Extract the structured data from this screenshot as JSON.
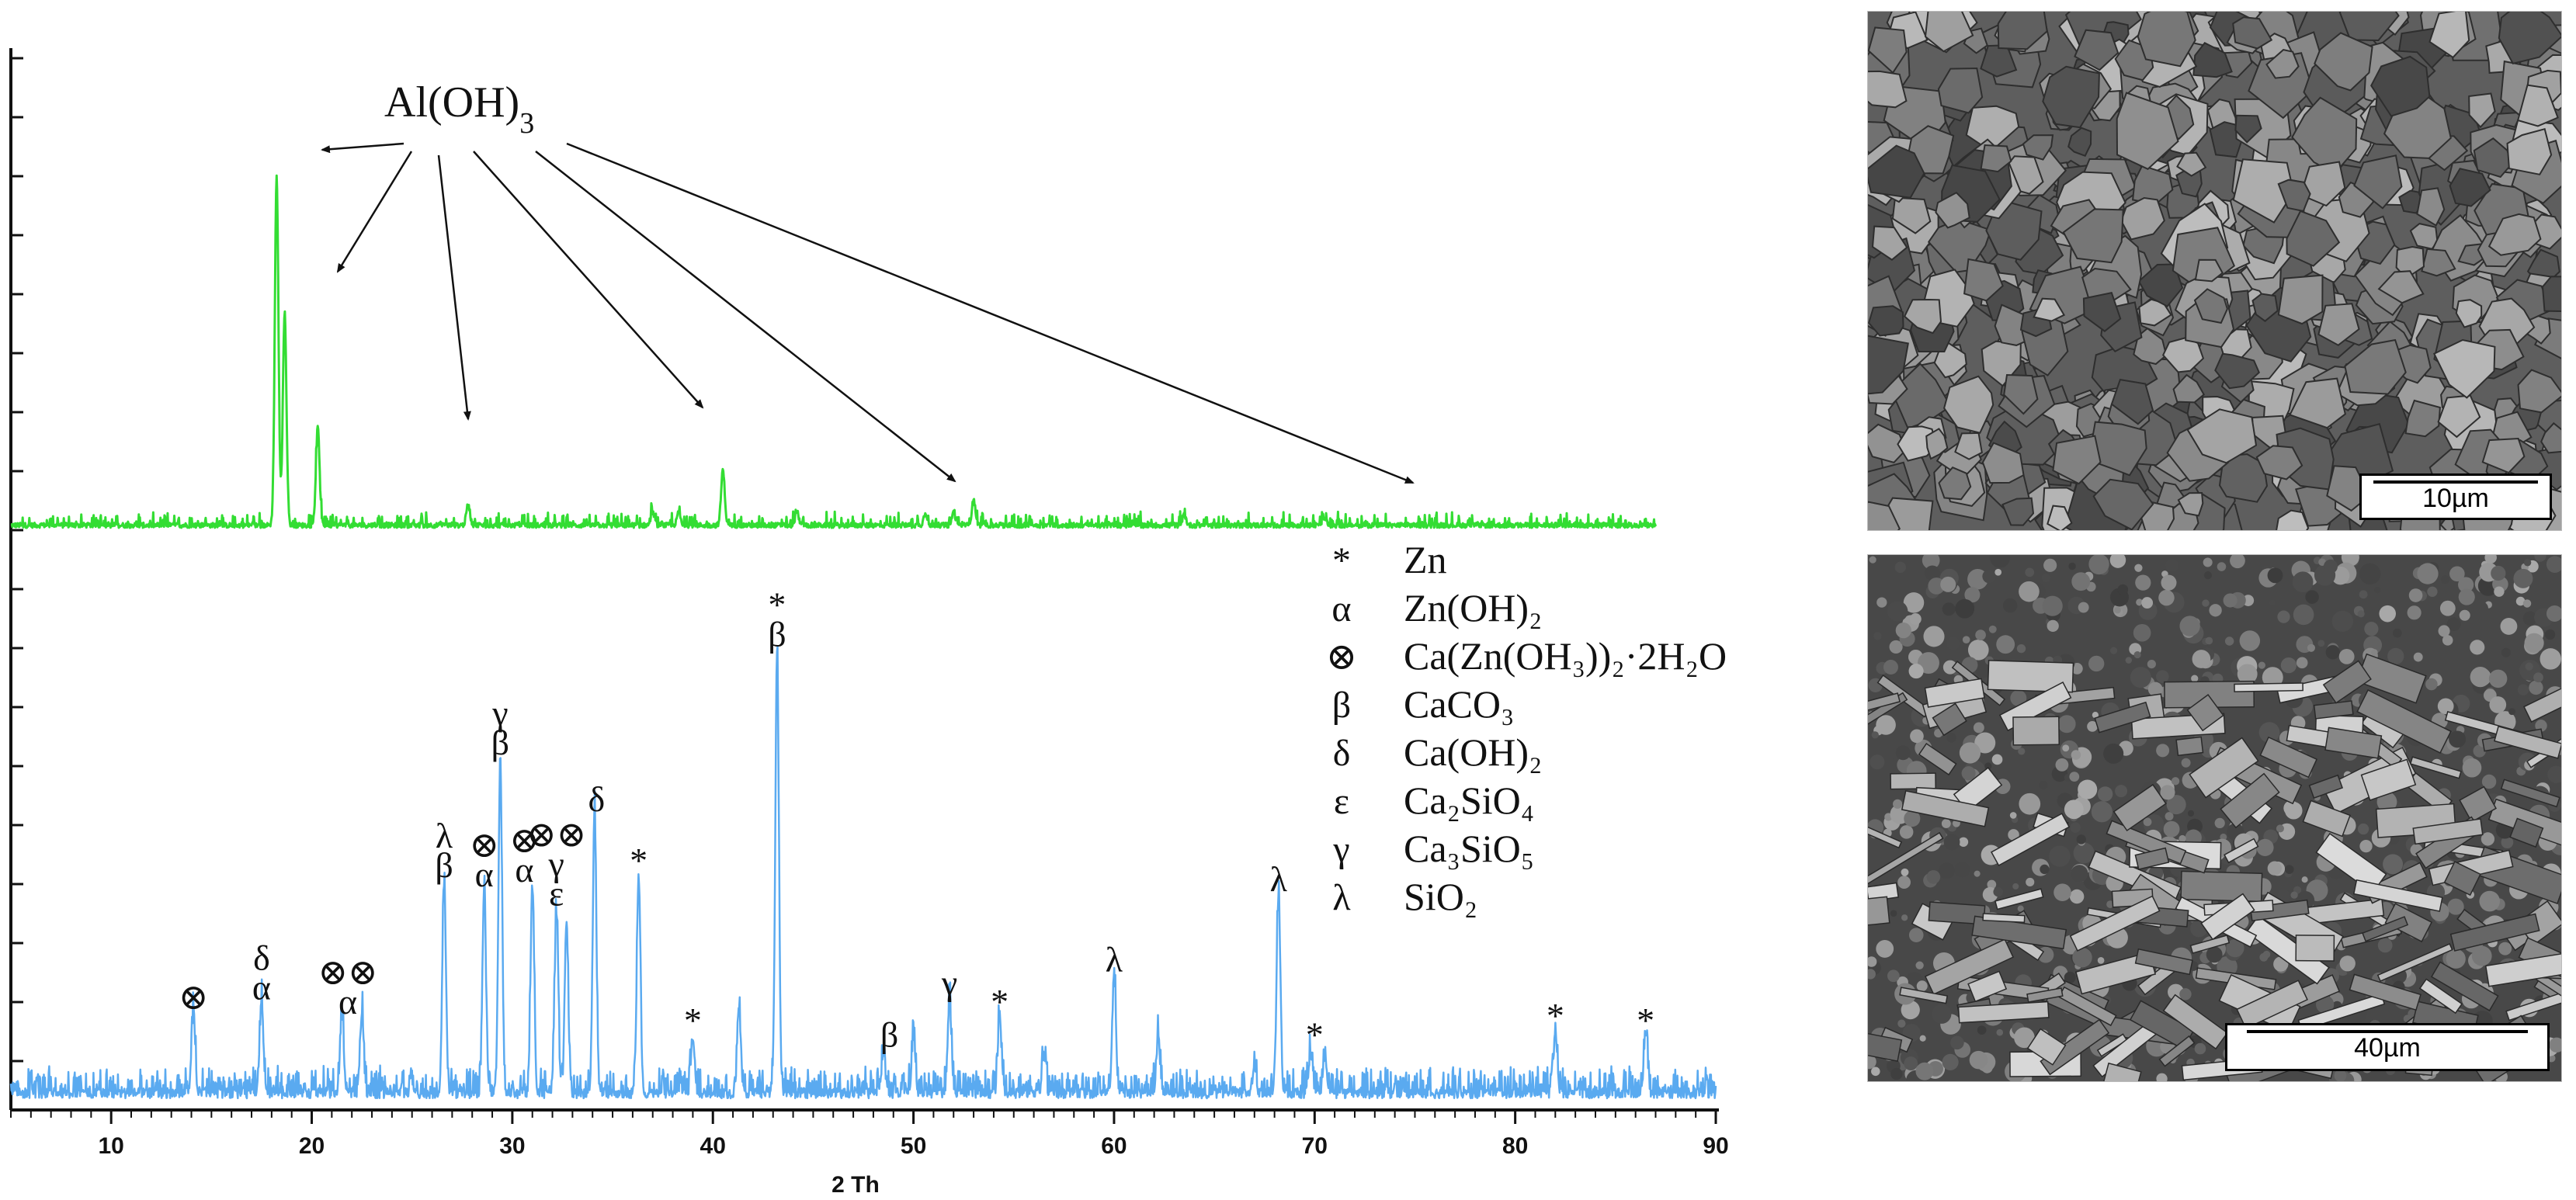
{
  "chart_data": {
    "type": "line",
    "xlabel": "2 Th",
    "ylabel": "",
    "xlim": [
      5,
      90
    ],
    "x_ticks": [
      10,
      20,
      30,
      40,
      50,
      60,
      70,
      80,
      90
    ],
    "grid": false,
    "series": [
      {
        "name": "",
        "color": "#33dd33",
        "peaks": [
          {
            "x": 18.25,
            "y": 0.82
          },
          {
            "x": 18.65,
            "y": 0.5
          },
          {
            "x": 20.3,
            "y": 0.23
          },
          {
            "x": 27.8,
            "y": 0.05
          },
          {
            "x": 37.0,
            "y": 0.03
          },
          {
            "x": 38.3,
            "y": 0.03
          },
          {
            "x": 40.5,
            "y": 0.13
          },
          {
            "x": 44.2,
            "y": 0.03
          },
          {
            "x": 50.6,
            "y": 0.03
          },
          {
            "x": 52.0,
            "y": 0.03
          },
          {
            "x": 53.0,
            "y": 0.06
          },
          {
            "x": 63.5,
            "y": 0.025
          },
          {
            "x": 70.5,
            "y": 0.02
          }
        ]
      },
      {
        "name": "",
        "color": "#5aaaf0",
        "peaks": [
          {
            "x": 14.1,
            "y": 0.17
          },
          {
            "x": 17.5,
            "y": 0.19
          },
          {
            "x": 21.5,
            "y": 0.16
          },
          {
            "x": 22.5,
            "y": 0.17
          },
          {
            "x": 26.6,
            "y": 0.45
          },
          {
            "x": 28.6,
            "y": 0.43
          },
          {
            "x": 29.4,
            "y": 0.71
          },
          {
            "x": 31.0,
            "y": 0.44
          },
          {
            "x": 32.2,
            "y": 0.39
          },
          {
            "x": 32.7,
            "y": 0.36
          },
          {
            "x": 34.1,
            "y": 0.59
          },
          {
            "x": 36.3,
            "y": 0.46
          },
          {
            "x": 39.0,
            "y": 0.12
          },
          {
            "x": 41.3,
            "y": 0.18
          },
          {
            "x": 43.2,
            "y": 0.94
          },
          {
            "x": 48.5,
            "y": 0.09
          },
          {
            "x": 50.0,
            "y": 0.12
          },
          {
            "x": 51.8,
            "y": 0.2
          },
          {
            "x": 54.3,
            "y": 0.16
          },
          {
            "x": 56.5,
            "y": 0.08
          },
          {
            "x": 60.0,
            "y": 0.25
          },
          {
            "x": 62.2,
            "y": 0.12
          },
          {
            "x": 67.0,
            "y": 0.06
          },
          {
            "x": 68.2,
            "y": 0.42
          },
          {
            "x": 69.8,
            "y": 0.09
          },
          {
            "x": 70.5,
            "y": 0.08
          },
          {
            "x": 82.0,
            "y": 0.13
          },
          {
            "x": 86.5,
            "y": 0.12
          }
        ]
      }
    ],
    "annotations": [
      {
        "text": "Al(OH)",
        "sub": "3",
        "arrow_targets": [
          18.0,
          20.8,
          27.8,
          39.9,
          51.7,
          74.3
        ]
      }
    ],
    "peak_labels": [
      {
        "x": 14.1,
        "lines": [
          "⊗"
        ]
      },
      {
        "x": 17.5,
        "lines": [
          "δ",
          "α"
        ]
      },
      {
        "x": 21.8,
        "lines": [
          "⊗⊗",
          "α"
        ]
      },
      {
        "x": 26.6,
        "lines": [
          "λ",
          "β"
        ]
      },
      {
        "x": 28.6,
        "lines": [
          "⊗",
          "α"
        ]
      },
      {
        "x": 29.4,
        "lines": [
          "γ",
          "β"
        ]
      },
      {
        "x": 30.6,
        "lines": [
          "⊗",
          "α"
        ]
      },
      {
        "x": 32.2,
        "lines": [
          "⊗⊗",
          "γ",
          "ε"
        ]
      },
      {
        "x": 34.2,
        "lines": [
          "δ"
        ]
      },
      {
        "x": 36.3,
        "lines": [
          "*"
        ]
      },
      {
        "x": 39.0,
        "lines": [
          "*"
        ]
      },
      {
        "x": 43.2,
        "lines": [
          "*",
          "β"
        ]
      },
      {
        "x": 48.8,
        "lines": [
          "β"
        ]
      },
      {
        "x": 51.8,
        "lines": [
          "γ"
        ]
      },
      {
        "x": 54.3,
        "lines": [
          "*"
        ]
      },
      {
        "x": 60.0,
        "lines": [
          "λ"
        ]
      },
      {
        "x": 68.2,
        "lines": [
          "λ"
        ]
      },
      {
        "x": 70.0,
        "lines": [
          "*"
        ]
      },
      {
        "x": 82.0,
        "lines": [
          "*"
        ]
      },
      {
        "x": 86.5,
        "lines": [
          "*"
        ]
      }
    ],
    "legend": [
      {
        "symbol": "*",
        "label": "Zn"
      },
      {
        "symbol": "α",
        "label": "Zn(OH)₂"
      },
      {
        "symbol": "⊗",
        "label": "Ca(Zn(OH₃))₂·2H₂O"
      },
      {
        "symbol": "β",
        "label": "CaCO₃"
      },
      {
        "symbol": "δ",
        "label": "Ca(OH)₂"
      },
      {
        "symbol": "ε",
        "label": "Ca₂SiO₄"
      },
      {
        "symbol": "γ",
        "label": "Ca₃SiO₅"
      },
      {
        "symbol": "λ",
        "label": "SiO₂"
      }
    ]
  },
  "images": {
    "top": {
      "scale_label": "10µm"
    },
    "bottom": {
      "scale_label": "40µm"
    }
  }
}
